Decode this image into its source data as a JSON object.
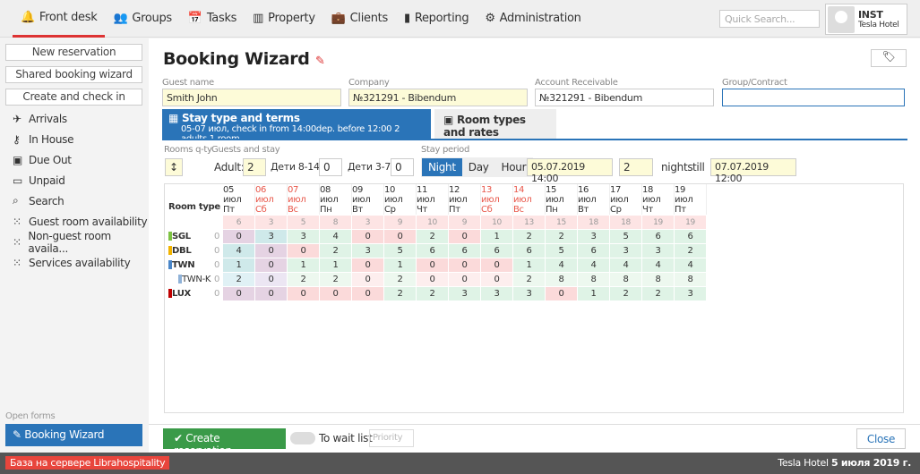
{
  "nav": {
    "items": [
      {
        "label": "Front desk",
        "icon": "bell-icon",
        "active": true
      },
      {
        "label": "Groups",
        "icon": "users-icon"
      },
      {
        "label": "Tasks",
        "icon": "calendar-check-icon"
      },
      {
        "label": "Property",
        "icon": "building-icon"
      },
      {
        "label": "Clients",
        "icon": "briefcase-icon"
      },
      {
        "label": "Reporting",
        "icon": "bar-chart-icon"
      },
      {
        "label": "Administration",
        "icon": "gears-icon"
      }
    ],
    "search_placeholder": "Quick Search...",
    "user": {
      "name": "INST",
      "hotel": "Tesla Hotel"
    }
  },
  "sidebar": {
    "buttons": [
      "New reservation",
      "Shared booking wizard",
      "Create and check in"
    ],
    "items": [
      {
        "label": "Arrivals",
        "icon": "plane-icon"
      },
      {
        "label": "In House",
        "icon": "key-icon"
      },
      {
        "label": "Due Out",
        "icon": "suitcase-icon"
      },
      {
        "label": "Unpaid",
        "icon": "money-icon"
      },
      {
        "label": "Search",
        "icon": "search-icon"
      },
      {
        "label": "Guest room availability",
        "icon": "grid-icon"
      },
      {
        "label": "Non-guest room availa...",
        "icon": "grid-icon"
      },
      {
        "label": "Services availability",
        "icon": "grid-icon"
      }
    ],
    "open_forms_label": "Open forms",
    "open_form": "Booking Wizard"
  },
  "wizard": {
    "title": "Booking Wizard",
    "guest_label": "Guest name",
    "guest": "Smith John",
    "company_label": "Company",
    "company": "№321291 - Bibendum",
    "ar_label": "Account Receivable",
    "ar": "№321291 - Bibendum",
    "group_label": "Group/Contract",
    "group": "",
    "tab1_title": "Stay type and terms",
    "tab1_sub": "05-07 июл, check in from 14:00dep. before 12:00 2 adults 1 room",
    "tab2_title": "Room types and rates",
    "rooms_label": "Rooms q-ty",
    "guests_label": "Guests and stay",
    "adult_label": "Adult:",
    "adults": "2",
    "kids1_label": "Дети 8-14",
    "kids1": "0",
    "kids2_label": "Дети 3-7",
    "kids2": "0",
    "period_label": "Stay period",
    "period_options": [
      "Night",
      "Day",
      "Hour"
    ],
    "period_selected": "Night",
    "from": "05.07.2019 14:00",
    "nights": "2",
    "nights_label": "nights",
    "till_label": "till",
    "till": "07.07.2019 12:00"
  },
  "availability": {
    "header": "Room type",
    "dates": [
      [
        "05 июл",
        "Пт",
        false
      ],
      [
        "06 июл",
        "Сб",
        true
      ],
      [
        "07 июл",
        "Вс",
        true
      ],
      [
        "08 июл",
        "Пн",
        false
      ],
      [
        "09 июл",
        "Вт",
        false
      ],
      [
        "10 июл",
        "Ср",
        false
      ],
      [
        "11 июл",
        "Чт",
        false
      ],
      [
        "12 июл",
        "Пт",
        false
      ],
      [
        "13 июл",
        "Сб",
        true
      ],
      [
        "14 июл",
        "Вс",
        true
      ],
      [
        "15 июл",
        "Пн",
        false
      ],
      [
        "16 июл",
        "Вт",
        false
      ],
      [
        "17 июл",
        "Ср",
        false
      ],
      [
        "18 июл",
        "Чт",
        false
      ],
      [
        "19 июл",
        "Пт",
        false
      ]
    ],
    "totals": [
      "6",
      "3",
      "5",
      "8",
      "3",
      "9",
      "10",
      "9",
      "10",
      "13",
      "15",
      "18",
      "18",
      "19",
      "19"
    ],
    "rows": [
      {
        "name": "SGL",
        "color": "#7dc242",
        "count": "0",
        "values": [
          "0",
          "3",
          "3",
          "4",
          "0",
          "0",
          "2",
          "0",
          "1",
          "2",
          "2",
          "3",
          "5",
          "6",
          "6"
        ]
      },
      {
        "name": "DBL",
        "color": "#f2b400",
        "count": "0",
        "values": [
          "4",
          "0",
          "0",
          "2",
          "3",
          "5",
          "6",
          "6",
          "6",
          "6",
          "5",
          "6",
          "3",
          "3",
          "2"
        ]
      },
      {
        "name": "TWN",
        "color": "#4a86c8",
        "count": "0",
        "values": [
          "1",
          "0",
          "1",
          "1",
          "0",
          "1",
          "0",
          "0",
          "0",
          "1",
          "4",
          "4",
          "4",
          "4",
          "4"
        ]
      },
      {
        "name": "TWN-K",
        "color": "#8fb2d8",
        "count": "0",
        "sub": true,
        "values": [
          "2",
          "0",
          "2",
          "2",
          "0",
          "2",
          "0",
          "0",
          "0",
          "2",
          "8",
          "8",
          "8",
          "8",
          "8"
        ]
      },
      {
        "name": "LUX",
        "color": "#c00000",
        "count": "0",
        "values": [
          "0",
          "0",
          "0",
          "0",
          "0",
          "2",
          "2",
          "3",
          "3",
          "3",
          "0",
          "1",
          "2",
          "2",
          "3"
        ]
      }
    ]
  },
  "footer": {
    "create": "Create reservation",
    "wait_list": "To wait list",
    "priority": "Priority",
    "close": "Close"
  },
  "status": {
    "server": "База на сервере Librahospitality",
    "hotel": "Tesla Hotel",
    "date": "5 июля 2019 г."
  }
}
